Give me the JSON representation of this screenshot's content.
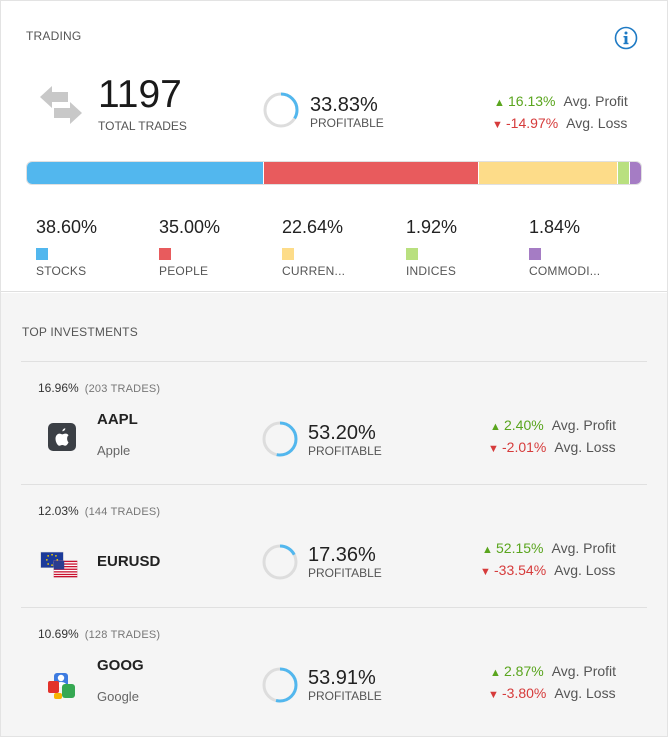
{
  "trading": {
    "title": "TRADING",
    "info_icon": "info-icon",
    "trades_icon": "exchange-arrows-icon",
    "total_trades": "1197",
    "total_trades_label": "TOTAL TRADES",
    "profitable_pct": "33.83%",
    "profitable_fraction": 0.3383,
    "profitable_label": "PROFITABLE",
    "avg_profit_value": "16.13%",
    "avg_profit_label": "Avg. Profit",
    "avg_loss_value": "-14.97%",
    "avg_loss_label": "Avg. Loss"
  },
  "allocation": {
    "segments": [
      {
        "name": "STOCKS",
        "pct_text": "38.60%",
        "value": 38.6,
        "color": "#52b7ee"
      },
      {
        "name": "PEOPLE",
        "pct_text": "35.00%",
        "value": 35.0,
        "color": "#e85b5d"
      },
      {
        "name": "CURREN...",
        "pct_text": "22.64%",
        "value": 22.64,
        "color": "#fddc89"
      },
      {
        "name": "INDICES",
        "pct_text": "1.92%",
        "value": 1.92,
        "color": "#b9e07f"
      },
      {
        "name": "COMMODI...",
        "pct_text": "1.84%",
        "value": 1.84,
        "color": "#a57cc4"
      }
    ]
  },
  "investments": {
    "title": "TOP INVESTMENTS",
    "items": [
      {
        "share": "16.96%",
        "trades": "(203 TRADES)",
        "ticker": "AAPL",
        "name": "Apple",
        "logo": "apple-logo-icon",
        "profitable_pct": "53.20%",
        "profitable_fraction": 0.532,
        "profitable_label": "PROFITABLE",
        "avg_profit_value": "2.40%",
        "avg_profit_label": "Avg. Profit",
        "avg_loss_value": "-2.01%",
        "avg_loss_label": "Avg. Loss"
      },
      {
        "share": "12.03%",
        "trades": "(144 TRADES)",
        "ticker": "EURUSD",
        "name": "",
        "logo": "eu-us-flags-icon",
        "profitable_pct": "17.36%",
        "profitable_fraction": 0.1736,
        "profitable_label": "PROFITABLE",
        "avg_profit_value": "52.15%",
        "avg_profit_label": "Avg. Profit",
        "avg_loss_value": "-33.54%",
        "avg_loss_label": "Avg. Loss"
      },
      {
        "share": "10.69%",
        "trades": "(128 TRADES)",
        "ticker": "GOOG",
        "name": "Google",
        "logo": "google-logo-icon",
        "profitable_pct": "53.91%",
        "profitable_fraction": 0.5391,
        "profitable_label": "PROFITABLE",
        "avg_profit_value": "2.87%",
        "avg_profit_label": "Avg. Profit",
        "avg_loss_value": "-3.80%",
        "avg_loss_label": "Avg. Loss"
      }
    ]
  },
  "colors": {
    "ring_track": "#dddddd",
    "ring_fill": "#52b7ee",
    "up": "#5aa51e",
    "down": "#d63b3b"
  }
}
